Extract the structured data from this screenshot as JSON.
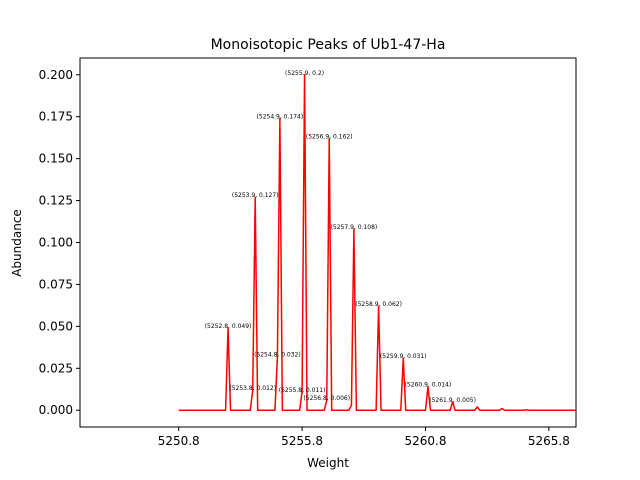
{
  "chart_data": {
    "type": "line",
    "title": "Monoisotopic Peaks of Ub1-47-Ha",
    "xlabel": "Weight",
    "ylabel": "Abundance",
    "xlim": [
      5246.8,
      5266.9
    ],
    "ylim": [
      -0.01,
      0.21
    ],
    "x_ticks": [
      5250.8,
      5255.8,
      5260.8,
      5265.8
    ],
    "x_tick_labels": [
      "5250.8",
      "5255.8",
      "5260.8",
      "5265.8"
    ],
    "y_ticks": [
      0.0,
      0.025,
      0.05,
      0.075,
      0.1,
      0.125,
      0.15,
      0.175,
      0.2
    ],
    "y_tick_labels": [
      "0.000",
      "0.025",
      "0.050",
      "0.075",
      "0.100",
      "0.125",
      "0.150",
      "0.175",
      "0.200"
    ],
    "grid": false,
    "line_color": "#ff0000",
    "series": [
      {
        "x": [
          5250.8,
          5252.7,
          5252.8,
          5252.9,
          5253.7,
          5253.8,
          5253.9,
          5254.0,
          5254.7,
          5254.8,
          5254.9,
          5255.0,
          5255.7,
          5255.8,
          5255.9,
          5256.0,
          5256.7,
          5256.8,
          5256.9,
          5257.0,
          5257.7,
          5257.8,
          5257.9,
          5258.0,
          5258.8,
          5258.9,
          5259.0,
          5259.8,
          5259.9,
          5260.0,
          5260.8,
          5260.9,
          5261.0,
          5261.8,
          5261.9,
          5262.0,
          5262.8,
          5262.9,
          5263.0,
          5263.8,
          5263.9,
          5264.0,
          5264.8,
          5264.9,
          5265.0,
          5266.9
        ],
        "y": [
          0.0,
          0.0,
          0.049,
          0.0,
          0.0,
          0.012,
          0.127,
          0.0,
          0.0,
          0.032,
          0.174,
          0.0,
          0.0,
          0.011,
          0.2,
          0.0,
          0.0,
          0.006,
          0.162,
          0.0,
          0.0,
          0.003,
          0.108,
          0.0,
          0.0,
          0.062,
          0.0,
          0.0,
          0.031,
          0.0,
          0.0,
          0.014,
          0.0,
          0.0,
          0.005,
          0.0,
          0.0,
          0.002,
          0.0,
          0.0,
          0.001,
          0.0,
          0.0,
          0.0003,
          0.0,
          0.0
        ]
      }
    ],
    "annotations": [
      {
        "text": "(5252.8, 0.049)",
        "x": 5252.8,
        "y": 0.049
      },
      {
        "text": "(5253.8, 0.012)",
        "x": 5253.8,
        "y": 0.012
      },
      {
        "text": "(5253.9, 0.127)",
        "x": 5253.9,
        "y": 0.127
      },
      {
        "text": "(5254.8, 0.032)",
        "x": 5254.8,
        "y": 0.032
      },
      {
        "text": "(5254.9, 0.174)",
        "x": 5254.9,
        "y": 0.174
      },
      {
        "text": "(5255.8, 0.011)",
        "x": 5255.8,
        "y": 0.011
      },
      {
        "text": "(5255.9, 0.2)",
        "x": 5255.9,
        "y": 0.2
      },
      {
        "text": "(5256.8, 0.006)",
        "x": 5256.8,
        "y": 0.006
      },
      {
        "text": "(5256.9, 0.162)",
        "x": 5256.9,
        "y": 0.162
      },
      {
        "text": "(5257.9, 0.108)",
        "x": 5257.9,
        "y": 0.108
      },
      {
        "text": "(5258.9, 0.062)",
        "x": 5258.9,
        "y": 0.062
      },
      {
        "text": "(5259.9, 0.031)",
        "x": 5259.9,
        "y": 0.031
      },
      {
        "text": "(5260.9, 0.014)",
        "x": 5260.9,
        "y": 0.014
      },
      {
        "text": "(5261.9, 0.005)",
        "x": 5261.9,
        "y": 0.005
      }
    ]
  }
}
